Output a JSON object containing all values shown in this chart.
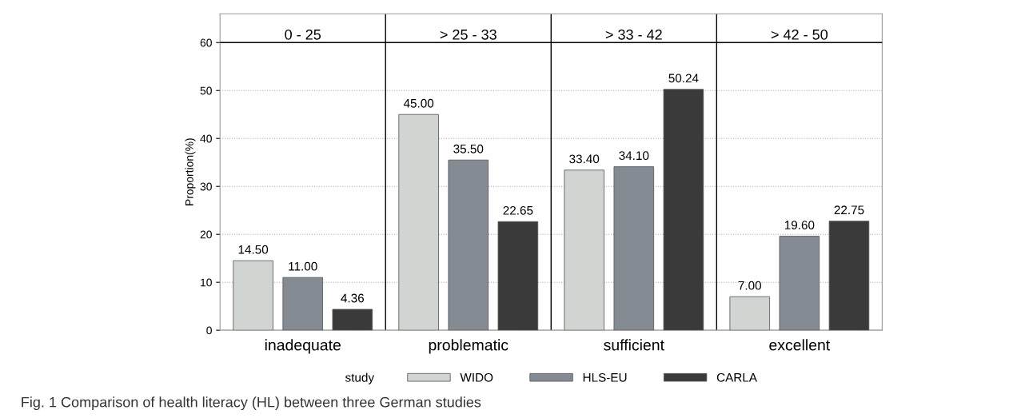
{
  "chart_data": {
    "type": "bar",
    "ylabel": "Proportion(%)",
    "legend_title": "study",
    "legend": "bottom",
    "categories": [
      "inadequate",
      "problematic",
      "sufficient",
      "excellent"
    ],
    "series": [
      {
        "name": "WIDO",
        "color": "#d0d5d2",
        "values": [
          14.5,
          45.0,
          33.4,
          7.0
        ],
        "value_labels": [
          "14.50",
          "45.00",
          "33.40",
          "7.00"
        ]
      },
      {
        "name": "HLS-EU",
        "color": "#858b92",
        "values": [
          11.0,
          35.5,
          34.1,
          19.6
        ],
        "value_labels": [
          "11.00",
          "35.50",
          "34.10",
          "19.60"
        ]
      },
      {
        "name": "CARLA",
        "color": "#3a3a3a",
        "values": [
          4.36,
          22.65,
          50.24,
          22.75
        ],
        "value_labels": [
          "4.36",
          "22.65",
          "50.24",
          "22.75"
        ]
      }
    ],
    "ylim": [
      0,
      66
    ],
    "yticks": [
      0,
      10,
      20,
      30,
      40,
      50,
      60
    ],
    "grid": "y",
    "annotations": [
      "0 - 25",
      "> 25 - 33",
      "> 33 - 42",
      "> 42 - 50",
      "Fig. 1 Comparison of health literacy (HL) between three German studies"
    ]
  }
}
